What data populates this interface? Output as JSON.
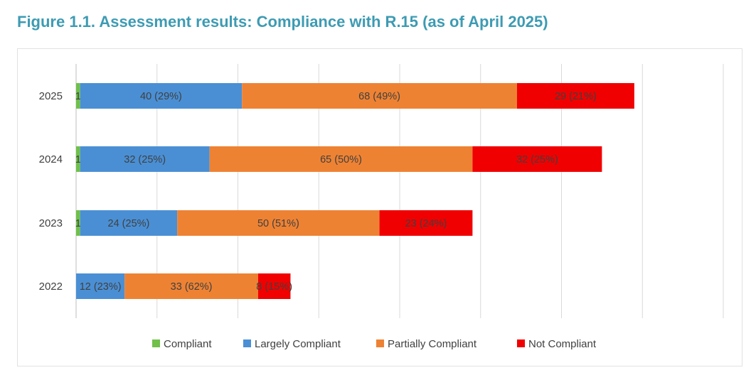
{
  "figure_title": "Figure 1.1. Assessment results: Compliance with R.15 (as of April 2025)",
  "chart_data": {
    "type": "bar",
    "orientation": "horizontal",
    "stacked": true,
    "categories": [
      "2025",
      "2024",
      "2023",
      "2022"
    ],
    "series": [
      {
        "name": "Compliant",
        "color": "#70c04a",
        "values": [
          1,
          1,
          1,
          0
        ],
        "labels": [
          "1",
          "1",
          "1",
          ""
        ]
      },
      {
        "name": "Largely Compliant",
        "color": "#4a8fd4",
        "values": [
          40,
          32,
          24,
          12
        ],
        "labels": [
          "40 (29%)",
          "32 (25%)",
          "24 (25%)",
          "12 (23%)"
        ]
      },
      {
        "name": "Partially Compliant",
        "color": "#ee8233",
        "values": [
          68,
          65,
          50,
          33
        ],
        "labels": [
          "68 (49%)",
          "65 (50%)",
          "50 (51%)",
          "33 (62%)"
        ]
      },
      {
        "name": "Not Compliant",
        "color": "#f00000",
        "values": [
          29,
          32,
          23,
          8
        ],
        "labels": [
          "29 (21%)",
          "32 (25%)",
          "23 (24%)",
          "8 (15%)"
        ]
      }
    ],
    "xlim": [
      0,
      160
    ],
    "grid": true,
    "legend_position": "bottom"
  }
}
